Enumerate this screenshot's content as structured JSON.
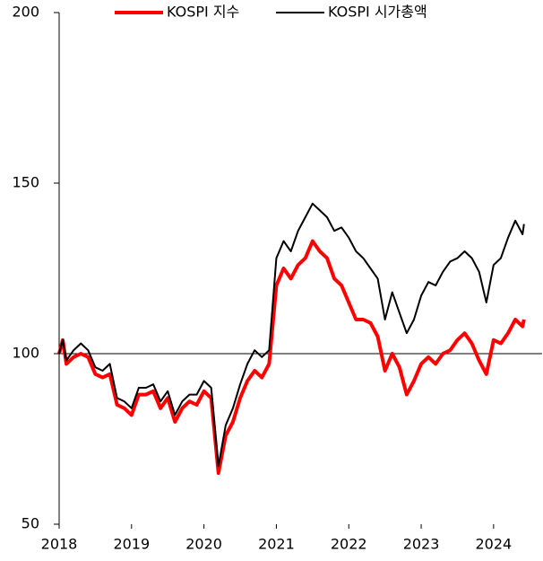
{
  "chart_data": {
    "type": "line",
    "x": [
      2018.0,
      2018.05,
      2018.1,
      2018.2,
      2018.3,
      2018.4,
      2018.5,
      2018.6,
      2018.7,
      2018.8,
      2018.9,
      2019.0,
      2019.1,
      2019.2,
      2019.3,
      2019.4,
      2019.5,
      2019.6,
      2019.7,
      2019.8,
      2019.9,
      2020.0,
      2020.1,
      2020.2,
      2020.3,
      2020.4,
      2020.5,
      2020.6,
      2020.7,
      2020.8,
      2020.9,
      2021.0,
      2021.1,
      2021.2,
      2021.3,
      2021.4,
      2021.5,
      2021.6,
      2021.7,
      2021.8,
      2021.9,
      2022.0,
      2022.1,
      2022.2,
      2022.3,
      2022.4,
      2022.5,
      2022.6,
      2022.7,
      2022.8,
      2022.9,
      2023.0,
      2023.1,
      2023.2,
      2023.3,
      2023.4,
      2023.5,
      2023.6,
      2023.7,
      2023.8,
      2023.9,
      2024.0,
      2024.1,
      2024.2,
      2024.3,
      2024.4,
      2024.42
    ],
    "series": [
      {
        "name": "KOSPI 지수",
        "color": "#ff0000",
        "width": 4,
        "values": [
          100,
          104,
          97,
          99,
          100,
          99,
          94,
          93,
          94,
          85,
          84,
          82,
          88,
          88,
          89,
          84,
          87,
          80,
          84,
          86,
          85,
          89,
          87,
          65,
          76,
          80,
          87,
          92,
          95,
          93,
          97,
          120,
          125,
          122,
          126,
          128,
          133,
          130,
          128,
          122,
          120,
          115,
          110,
          110,
          109,
          105,
          95,
          100,
          96,
          88,
          92,
          97,
          99,
          97,
          100,
          101,
          104,
          106,
          103,
          98,
          94,
          104,
          103,
          106,
          110,
          108,
          110
        ]
      },
      {
        "name": "KOSPI 시가총액",
        "color": "#000000",
        "width": 2,
        "values": [
          100,
          104,
          98,
          101,
          103,
          101,
          96,
          95,
          97,
          87,
          86,
          84,
          90,
          90,
          91,
          86,
          89,
          82,
          86,
          88,
          88,
          92,
          90,
          67,
          79,
          84,
          91,
          97,
          101,
          99,
          101,
          128,
          133,
          130,
          136,
          140,
          144,
          142,
          140,
          136,
          137,
          134,
          130,
          128,
          125,
          122,
          110,
          118,
          112,
          106,
          110,
          117,
          121,
          120,
          124,
          127,
          128,
          130,
          128,
          124,
          115,
          126,
          128,
          134,
          139,
          135,
          138
        ]
      }
    ],
    "xlim": [
      2018,
      2024.67
    ],
    "xticks": [
      2018,
      2019,
      2020,
      2021,
      2022,
      2023,
      2024
    ],
    "ylim": [
      50,
      200
    ],
    "yticks": [
      50,
      100,
      150,
      200
    ],
    "x_axis_at": 100
  }
}
